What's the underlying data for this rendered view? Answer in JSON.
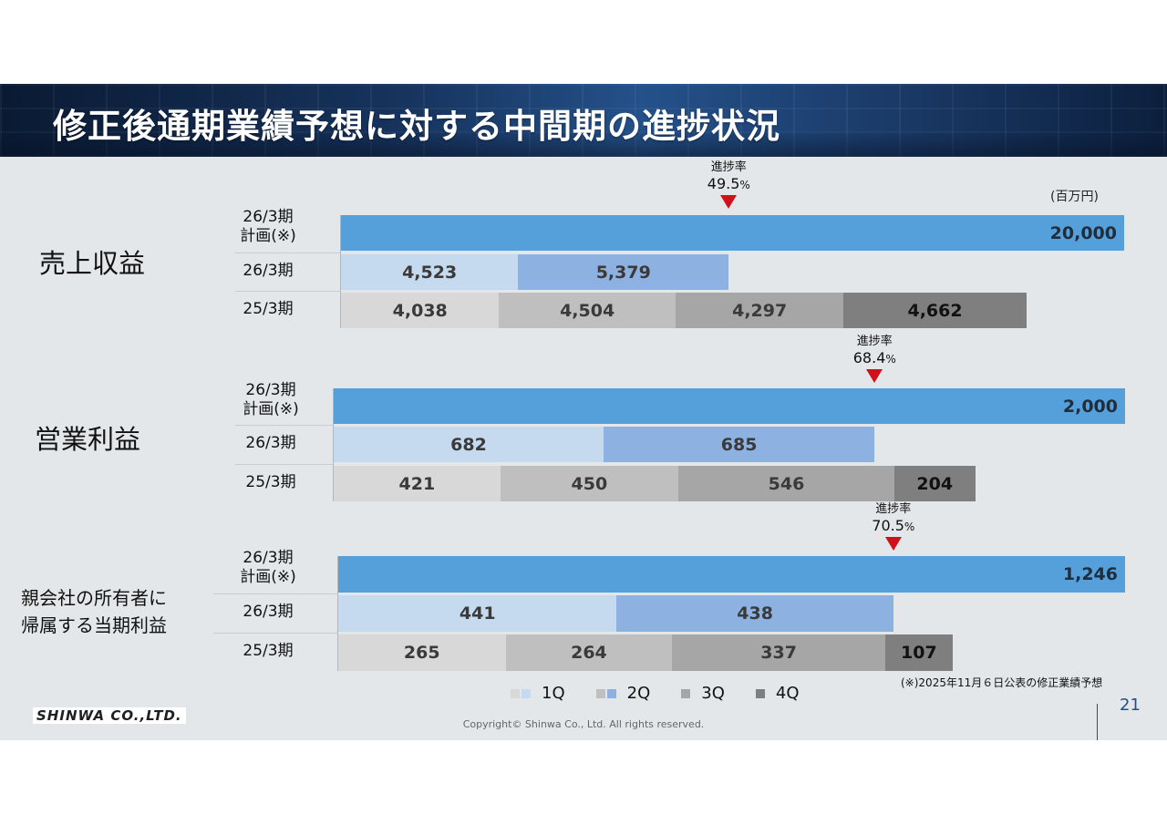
{
  "title": "修正後通期業績予想に対する中間期の進捗状況",
  "unit": "(百万円)",
  "progress_label": "進捗率",
  "legend": [
    "1Q",
    "2Q",
    "3Q",
    "4Q"
  ],
  "note": "(※)2025年11月６日公表の修正業績予想",
  "company": "SHINWA CO.,LTD.",
  "copyright": "Copyright© Shinwa Co., Ltd. All rights reserved.",
  "page_number": "21",
  "colors": {
    "plan": "#55a0db",
    "q1_current": "#c5d9ef",
    "q2_current": "#8db2e2",
    "q1_prior": "#d8d8d8",
    "q2_prior": "#bfbfbf",
    "q3_prior": "#a6a6a6",
    "q4_prior": "#7f7f7f",
    "marker": "#d0111c"
  },
  "sections": [
    {
      "label_lines": [
        "売上収益"
      ],
      "row_labels": {
        "plan": [
          "26/3期",
          "計画(※)"
        ],
        "current": "26/3期",
        "prior": "25/3期"
      },
      "progress_value": "49.5",
      "progress_unit": "%",
      "plan_text": "20,000",
      "current_text": [
        "4,523",
        "5,379"
      ],
      "prior_text": [
        "4,038",
        "4,504",
        "4,297",
        "4,662"
      ]
    },
    {
      "label_lines": [
        "営業利益"
      ],
      "row_labels": {
        "plan": [
          "26/3期",
          "計画(※)"
        ],
        "current": "26/3期",
        "prior": "25/3期"
      },
      "progress_value": "68.4",
      "progress_unit": "%",
      "plan_text": "2,000",
      "current_text": [
        "682",
        "685"
      ],
      "prior_text": [
        "421",
        "450",
        "546",
        "204"
      ]
    },
    {
      "label_lines": [
        "親会社の所有者に",
        "帰属する当期利益"
      ],
      "row_labels": {
        "plan": [
          "26/3期",
          "計画(※)"
        ],
        "current": "26/3期",
        "prior": "25/3期"
      },
      "progress_value": "70.5",
      "progress_unit": "%",
      "plan_text": "1,246",
      "current_text": [
        "441",
        "438"
      ],
      "prior_text": [
        "265",
        "264",
        "337",
        "107"
      ]
    }
  ],
  "chart_data": [
    {
      "type": "bar",
      "orientation": "horizontal-stacked",
      "title": "売上収益",
      "unit": "百万円",
      "rows": [
        "26/3期 計画(※)",
        "26/3期",
        "25/3期"
      ],
      "plan": 20000,
      "current_quarters": [
        4523,
        5379
      ],
      "prior_quarters": [
        4038,
        4504,
        4297,
        4662
      ],
      "progress_rate": 49.5
    },
    {
      "type": "bar",
      "orientation": "horizontal-stacked",
      "title": "営業利益",
      "unit": "百万円",
      "rows": [
        "26/3期 計画(※)",
        "26/3期",
        "25/3期"
      ],
      "plan": 2000,
      "current_quarters": [
        682,
        685
      ],
      "prior_quarters": [
        421,
        450,
        546,
        204
      ],
      "progress_rate": 68.4
    },
    {
      "type": "bar",
      "orientation": "horizontal-stacked",
      "title": "親会社の所有者に帰属する当期利益",
      "unit": "百万円",
      "rows": [
        "26/3期 計画(※)",
        "26/3期",
        "25/3期"
      ],
      "plan": 1246,
      "current_quarters": [
        441,
        438
      ],
      "prior_quarters": [
        265,
        264,
        337,
        107
      ],
      "progress_rate": 70.5
    }
  ]
}
